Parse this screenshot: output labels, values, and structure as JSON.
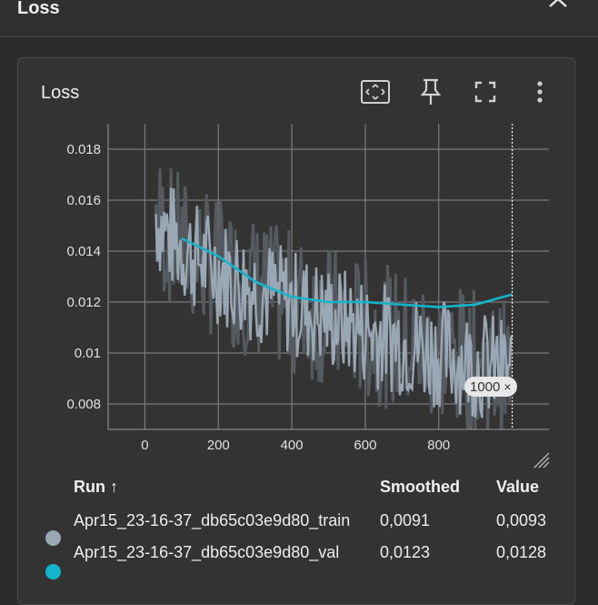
{
  "section": {
    "title": "Loss"
  },
  "card": {
    "title": "Loss",
    "icons": [
      "fit-domain-icon",
      "pin-icon",
      "fullscreen-icon",
      "more-vert-icon"
    ]
  },
  "hover_step": {
    "label": "1000",
    "close": "×"
  },
  "chart_data": {
    "type": "line",
    "title": "Loss",
    "xlabel": "",
    "ylabel": "",
    "xlim": [
      -100,
      1100
    ],
    "ylim": [
      0.007,
      0.019
    ],
    "x_ticks": [
      0,
      200,
      400,
      600,
      800
    ],
    "y_ticks": [
      0.008,
      0.01,
      0.012,
      0.014,
      0.016,
      0.018
    ],
    "y_tick_labels": [
      "0.008",
      "0.01",
      "0.012",
      "0.014",
      "0.016",
      "0.018"
    ],
    "x_tick_labels": [
      "0",
      "200",
      "400",
      "600",
      "800"
    ],
    "grid": true,
    "series": [
      {
        "name": "Apr15_23-16-37_db65c03e9d80_train",
        "color": "#9aa7b4",
        "raw_x_range": [
          30,
          1000
        ],
        "noise_band": {
          "center_start": 0.0155,
          "center_end": 0.0092,
          "amplitude": 0.0022
        }
      },
      {
        "name": "Apr15_23-16-37_db65c03e9d80_val",
        "color": "#12b5cb",
        "x": [
          100,
          200,
          300,
          400,
          500,
          600,
          700,
          800,
          900,
          1000
        ],
        "y": [
          0.0145,
          0.0138,
          0.0128,
          0.0122,
          0.012,
          0.012,
          0.0119,
          0.0118,
          0.0119,
          0.0123
        ]
      }
    ],
    "hover_x": 1000
  },
  "table": {
    "headers": {
      "run": "Run ↑",
      "smoothed": "Smoothed",
      "value": "Value"
    },
    "rows": [
      {
        "run": "Apr15_23-16-37_db65c03e9d80_train",
        "smoothed": "0,0091",
        "value": "0,0093",
        "color": "#9aa7b4"
      },
      {
        "run": "Apr15_23-16-37_db65c03e9d80_val",
        "smoothed": "0,0123",
        "value": "0,0128",
        "color": "#12b5cb"
      }
    ]
  }
}
